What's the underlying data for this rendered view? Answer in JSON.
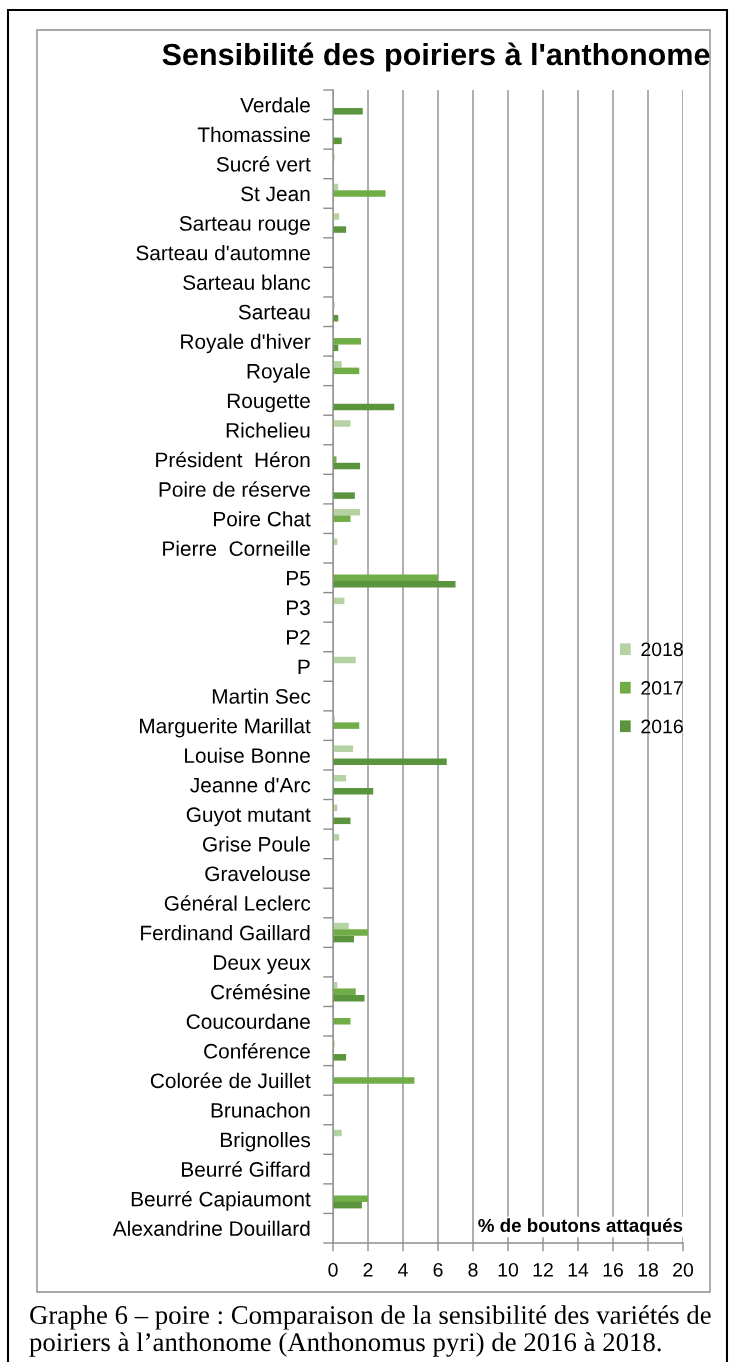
{
  "chart_data": {
    "type": "bar",
    "orientation": "horizontal",
    "title": "Sensibilité des poiriers à l'anthonome",
    "xlabel": "% de boutons attaqués",
    "categories": [
      "Verdale",
      "Thomassine",
      "Sucré vert",
      "St Jean",
      "Sarteau rouge",
      "Sarteau d'automne",
      "Sarteau blanc",
      "Sarteau",
      "Royale d'hiver",
      "Royale",
      "Rougette",
      "Richelieu",
      "Président  Héron",
      "Poire de réserve",
      "Poire Chat",
      "Pierre  Corneille",
      "P5",
      "P3",
      "P2",
      "P",
      "Martin Sec",
      "Marguerite Marillat",
      "Louise Bonne",
      "Jeanne d'Arc",
      "Guyot mutant",
      "Grise Poule",
      "Gravelouse",
      "Général Leclerc",
      "Ferdinand Gaillard",
      "Deux yeux",
      "Crémésine",
      "Coucourdane",
      "Conférence",
      "Colorée de Juillet",
      "Brunachon",
      "Brignolles",
      "Beurré Giffard",
      "Beurré Capiaumont",
      "Alexandrine Douillard"
    ],
    "series": [
      {
        "name": "2018",
        "color": "#b5d3a2",
        "values": [
          null,
          null,
          0.1,
          0.3,
          0.35,
          null,
          null,
          0.1,
          null,
          0.5,
          null,
          1.0,
          null,
          null,
          1.55,
          0.25,
          null,
          0.65,
          null,
          1.3,
          null,
          0.1,
          1.15,
          0.75,
          0.25,
          0.35,
          null,
          null,
          0.9,
          null,
          0.25,
          null,
          0.1,
          null,
          null,
          0.5,
          null,
          null,
          null
        ]
      },
      {
        "name": "2017",
        "color": "#70ad47",
        "values": [
          null,
          null,
          null,
          3.0,
          null,
          null,
          null,
          null,
          1.6,
          1.5,
          null,
          null,
          0.2,
          null,
          1.0,
          null,
          6.0,
          null,
          null,
          null,
          null,
          1.5,
          null,
          null,
          null,
          null,
          null,
          null,
          2.0,
          null,
          1.3,
          1.0,
          null,
          4.65,
          null,
          null,
          null,
          2.0,
          null
        ]
      },
      {
        "name": "2016",
        "color": "#5a943c",
        "values": [
          1.7,
          0.5,
          null,
          null,
          0.75,
          null,
          null,
          0.3,
          0.3,
          null,
          3.5,
          null,
          1.55,
          1.25,
          null,
          null,
          7.0,
          null,
          null,
          null,
          null,
          null,
          6.5,
          2.3,
          1.0,
          null,
          null,
          null,
          1.2,
          null,
          1.8,
          null,
          0.75,
          null,
          null,
          null,
          null,
          1.65,
          null
        ]
      }
    ],
    "xlim": [
      0,
      20
    ],
    "xticks": [
      0,
      2,
      4,
      6,
      8,
      10,
      12,
      14,
      16,
      18,
      20
    ],
    "grid": "x",
    "legend": "right",
    "annotations": [
      "Graphe 6 – poire : Comparaison de la sensibilité des variétés de poiriers à l’anthonome (Anthonomus pyri) de 2016 à 2018."
    ]
  }
}
